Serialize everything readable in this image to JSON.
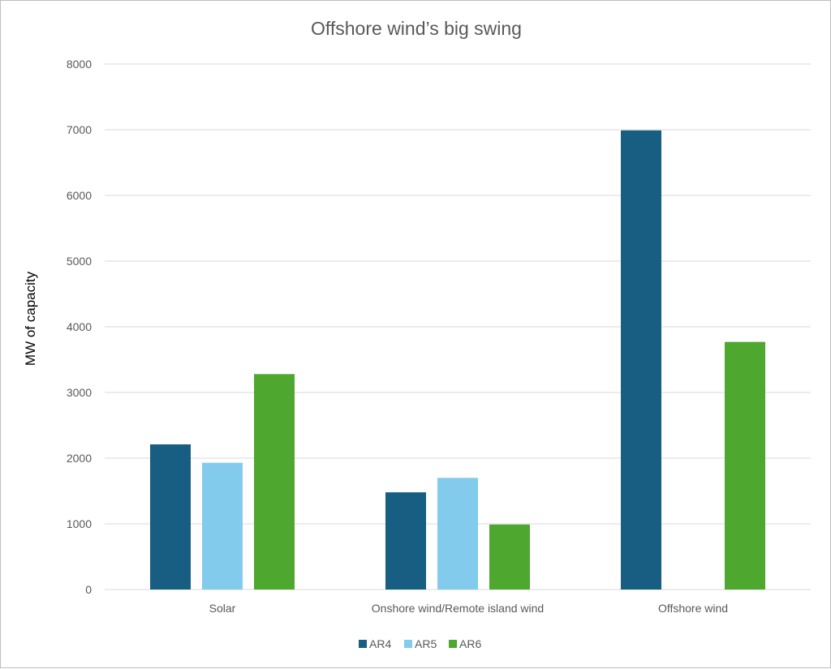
{
  "chart_data": {
    "type": "bar",
    "title": "Offshore wind’s big swing",
    "xlabel": "",
    "ylabel": "MW of capacity",
    "ylim": [
      0,
      8000
    ],
    "yticks": [
      0,
      1000,
      2000,
      3000,
      4000,
      5000,
      6000,
      7000,
      8000
    ],
    "grid": true,
    "legend_position": "bottom",
    "categories": [
      "Solar",
      "Onshore wind/Remote island wind",
      "Offshore wind"
    ],
    "series": [
      {
        "name": "AR4",
        "color": "#175e82",
        "values": [
          2210,
          1480,
          6990
        ]
      },
      {
        "name": "AR5",
        "color": "#82cbec",
        "values": [
          1930,
          1700,
          0
        ]
      },
      {
        "name": "AR6",
        "color": "#4ea72e",
        "values": [
          3280,
          990,
          3770
        ]
      }
    ]
  }
}
